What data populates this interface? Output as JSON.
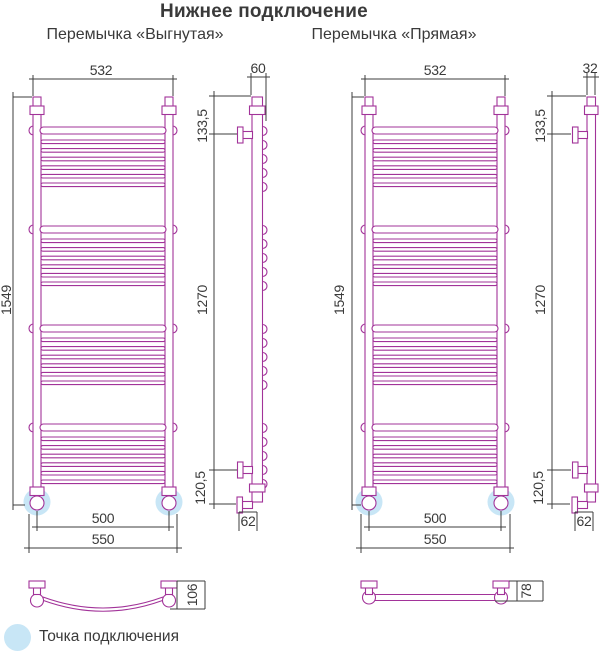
{
  "title": "Нижнее подключение",
  "legend": {
    "label": "Точка подключения"
  },
  "colors": {
    "pipe": "#A23399",
    "dim": "#3C3C3C",
    "text": "#3A3A3A",
    "highlight": "#C8E6F6"
  },
  "left": {
    "subtitle": "Перемычка «Выгнутая»",
    "dims": {
      "width_top": "532",
      "height": "1549",
      "mount_width": "500",
      "overall_width": "550",
      "depth": "60",
      "top_offset": "133,5",
      "bracket_span": "1270",
      "bottom_offset": "120,5",
      "outlet": "62",
      "jumper_depth": "106"
    }
  },
  "right": {
    "subtitle": "Перемычка «Прямая»",
    "dims": {
      "width_top": "532",
      "height": "1549",
      "mount_width": "500",
      "overall_width": "550",
      "depth": "32",
      "top_offset": "133,5",
      "bracket_span": "1270",
      "bottom_offset": "120,5",
      "outlet": "62",
      "jumper_depth": "78"
    }
  }
}
